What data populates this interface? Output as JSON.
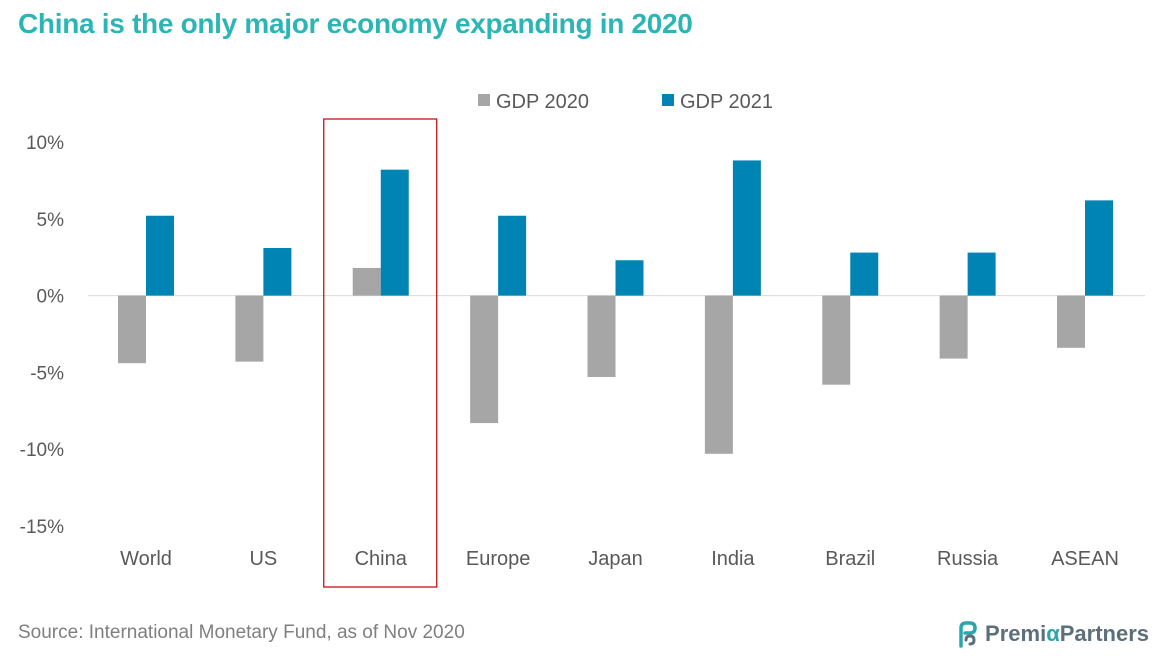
{
  "title": "China is the only major economy expanding in 2020",
  "source": "Source: International Monetary Fund, as of Nov 2020",
  "brand": {
    "part1": "Premi",
    "alpha": "α",
    "part2": "Partners",
    "icon": "premia-logo-icon"
  },
  "colors": {
    "title": "#2cb5b5",
    "gdp2020": "#a6a6a6",
    "gdp2021": "#0084b4",
    "highlight": "#c00000"
  },
  "chart_data": {
    "type": "bar",
    "categories": [
      "World",
      "US",
      "China",
      "Europe",
      "Japan",
      "India",
      "Brazil",
      "Russia",
      "ASEAN"
    ],
    "series": [
      {
        "name": "GDP 2020",
        "values": [
          -4.4,
          -4.3,
          1.8,
          -8.3,
          -5.3,
          -10.3,
          -5.8,
          -4.1,
          -3.4
        ]
      },
      {
        "name": "GDP 2021",
        "values": [
          5.2,
          3.1,
          8.2,
          5.2,
          2.3,
          8.8,
          2.8,
          2.8,
          6.2
        ]
      }
    ],
    "yticks": [
      "10%",
      "5%",
      "0%",
      "-5%",
      "-10%",
      "-15%"
    ],
    "ylim": [
      -15,
      10
    ],
    "legend": "top-center",
    "highlight_category": "China",
    "grid": false
  }
}
